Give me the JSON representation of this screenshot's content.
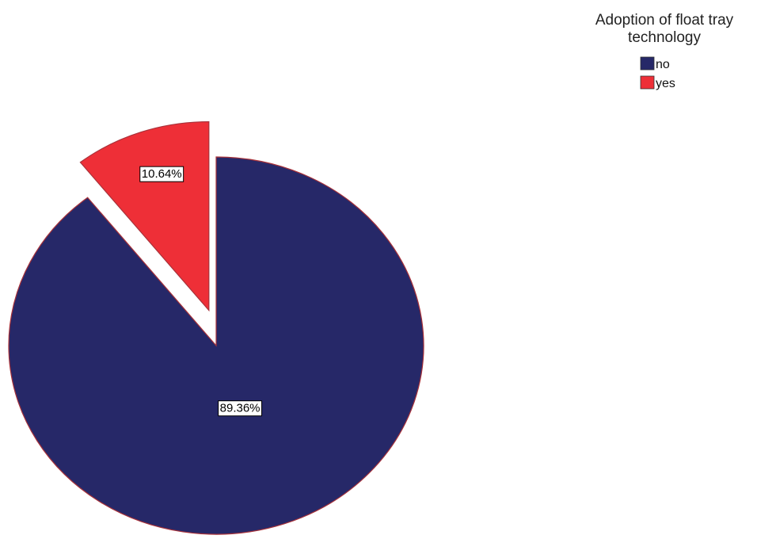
{
  "chart_data": {
    "type": "pie",
    "title": "",
    "legend": {
      "title": "Adoption of float tray technology",
      "title_lines": [
        "Adoption of float tray",
        "technology"
      ],
      "placement": "top-right"
    },
    "slices": [
      {
        "label": "no",
        "value": 89.36,
        "value_label": "89.36%",
        "color": "#262868",
        "exploded": false
      },
      {
        "label": "yes",
        "value": 10.64,
        "value_label": "10.64%",
        "color": "#ee2f37",
        "exploded": true
      }
    ],
    "start_angle": "12 o'clock",
    "direction": "counter-clockwise"
  }
}
